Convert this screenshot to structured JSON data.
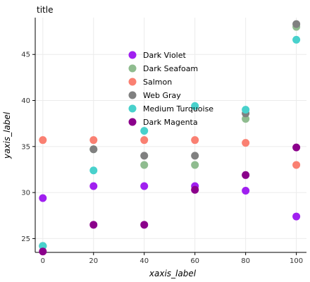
{
  "chart_data": {
    "type": "scatter",
    "title": "title",
    "xlabel": "xaxis_label",
    "ylabel": "yaxis_label",
    "xlim": [
      -3,
      104
    ],
    "ylim": [
      23.5,
      49
    ],
    "x_ticks": [
      0,
      20,
      40,
      60,
      80,
      100
    ],
    "y_ticks": [
      25,
      30,
      35,
      40,
      45
    ],
    "grid": true,
    "legend_position": "top-center",
    "series": [
      {
        "name": "Dark Violet",
        "color": "#a020f0",
        "x": [
          0,
          20,
          40,
          60,
          80,
          100
        ],
        "y": [
          29.4,
          30.7,
          30.7,
          30.7,
          30.2,
          27.4
        ]
      },
      {
        "name": "Dark Seafoam",
        "color": "#8fbc8f",
        "x": [
          0,
          20,
          40,
          60,
          80,
          100
        ],
        "y": [
          24.2,
          34.7,
          33.0,
          33.0,
          38.0,
          48.0
        ]
      },
      {
        "name": "Salmon",
        "color": "#fa8072",
        "x": [
          0,
          20,
          40,
          60,
          80,
          100
        ],
        "y": [
          35.7,
          35.7,
          35.7,
          35.7,
          35.4,
          33.0
        ]
      },
      {
        "name": "Web Gray",
        "color": "#808080",
        "x": [
          0,
          20,
          40,
          60,
          80,
          100
        ],
        "y": [
          24.2,
          34.7,
          34.0,
          34.0,
          38.6,
          48.3
        ]
      },
      {
        "name": "Medium Turquoise",
        "color": "#48d1cc",
        "x": [
          0,
          20,
          40,
          60,
          80,
          100
        ],
        "y": [
          24.2,
          32.4,
          36.7,
          39.4,
          39.0,
          46.6
        ]
      },
      {
        "name": "Dark Magenta",
        "color": "#8b008b",
        "x": [
          0,
          20,
          40,
          60,
          80,
          100
        ],
        "y": [
          23.6,
          26.5,
          26.5,
          30.3,
          31.9,
          34.9
        ]
      }
    ]
  }
}
